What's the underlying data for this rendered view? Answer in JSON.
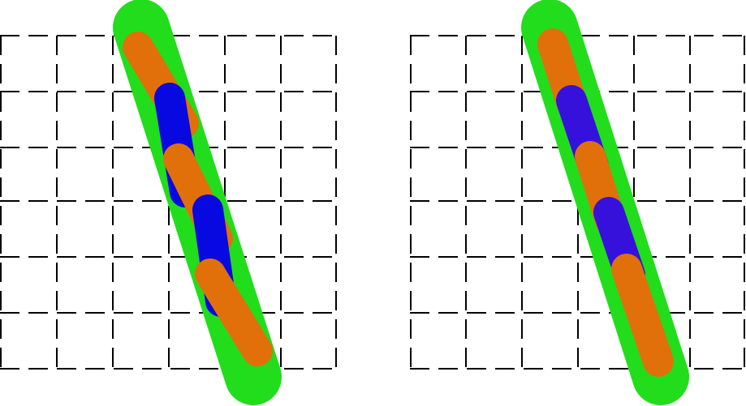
{
  "colors": {
    "background": "#ffffff",
    "grid": "#000000",
    "band": "#22dd1c",
    "orange": "#e1700a",
    "blue_left": "#0808e0",
    "blue_right": "#3611dc"
  },
  "panels": [
    {
      "id": "left",
      "grid_rows": 6,
      "grid_cols": 6
    },
    {
      "id": "right",
      "grid_rows": 6,
      "grid_cols": 6
    }
  ]
}
